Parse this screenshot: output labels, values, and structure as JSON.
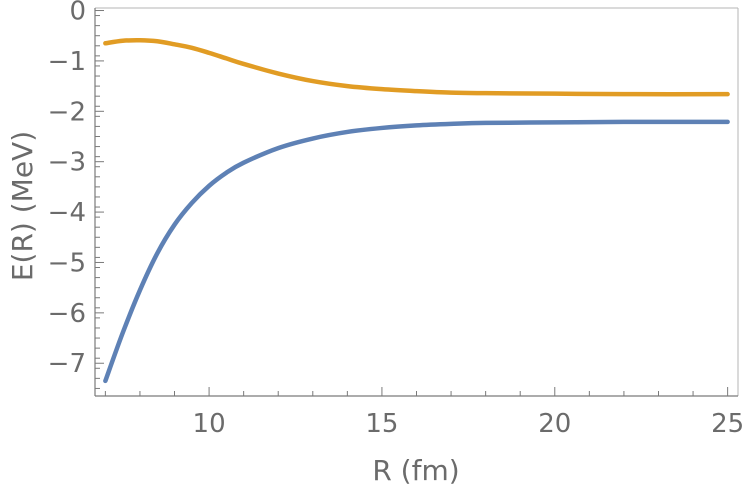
{
  "chart_data": {
    "type": "line",
    "title": "",
    "xlabel": "R (fm)",
    "ylabel": "E(R) (MeV)",
    "xlim": [
      6.7,
      25.3
    ],
    "ylim": [
      -7.65,
      0.05
    ],
    "x_ticks": [
      10,
      15,
      20,
      25
    ],
    "x_tick_labels": [
      "10",
      "15",
      "20",
      "25"
    ],
    "y_ticks": [
      0,
      -1,
      -2,
      -3,
      -4,
      -5,
      -6,
      -7
    ],
    "y_tick_labels": [
      "0",
      "−1",
      "−2",
      "−3",
      "−4",
      "−5",
      "−6",
      "−7"
    ],
    "grid": false,
    "legend": "none",
    "series": [
      {
        "color": "#5e81b5",
        "x": [
          7,
          7.5,
          8,
          8.5,
          9,
          9.5,
          10,
          10.5,
          11,
          12,
          13,
          14,
          15,
          16,
          17,
          18,
          20,
          22,
          25
        ],
        "y": [
          -7.35,
          -6.4,
          -5.55,
          -4.82,
          -4.25,
          -3.82,
          -3.48,
          -3.22,
          -3.02,
          -2.73,
          -2.54,
          -2.41,
          -2.33,
          -2.28,
          -2.25,
          -2.23,
          -2.22,
          -2.21,
          -2.21
        ]
      },
      {
        "color": "#e19c24",
        "x": [
          7,
          7.5,
          8,
          8.5,
          9,
          9.5,
          10,
          10.5,
          11,
          12,
          13,
          14,
          15,
          16,
          17,
          18,
          20,
          22,
          25
        ],
        "y": [
          -0.65,
          -0.6,
          -0.59,
          -0.61,
          -0.67,
          -0.74,
          -0.84,
          -0.95,
          -1.06,
          -1.25,
          -1.4,
          -1.5,
          -1.56,
          -1.6,
          -1.63,
          -1.64,
          -1.65,
          -1.66,
          -1.66
        ]
      }
    ]
  }
}
